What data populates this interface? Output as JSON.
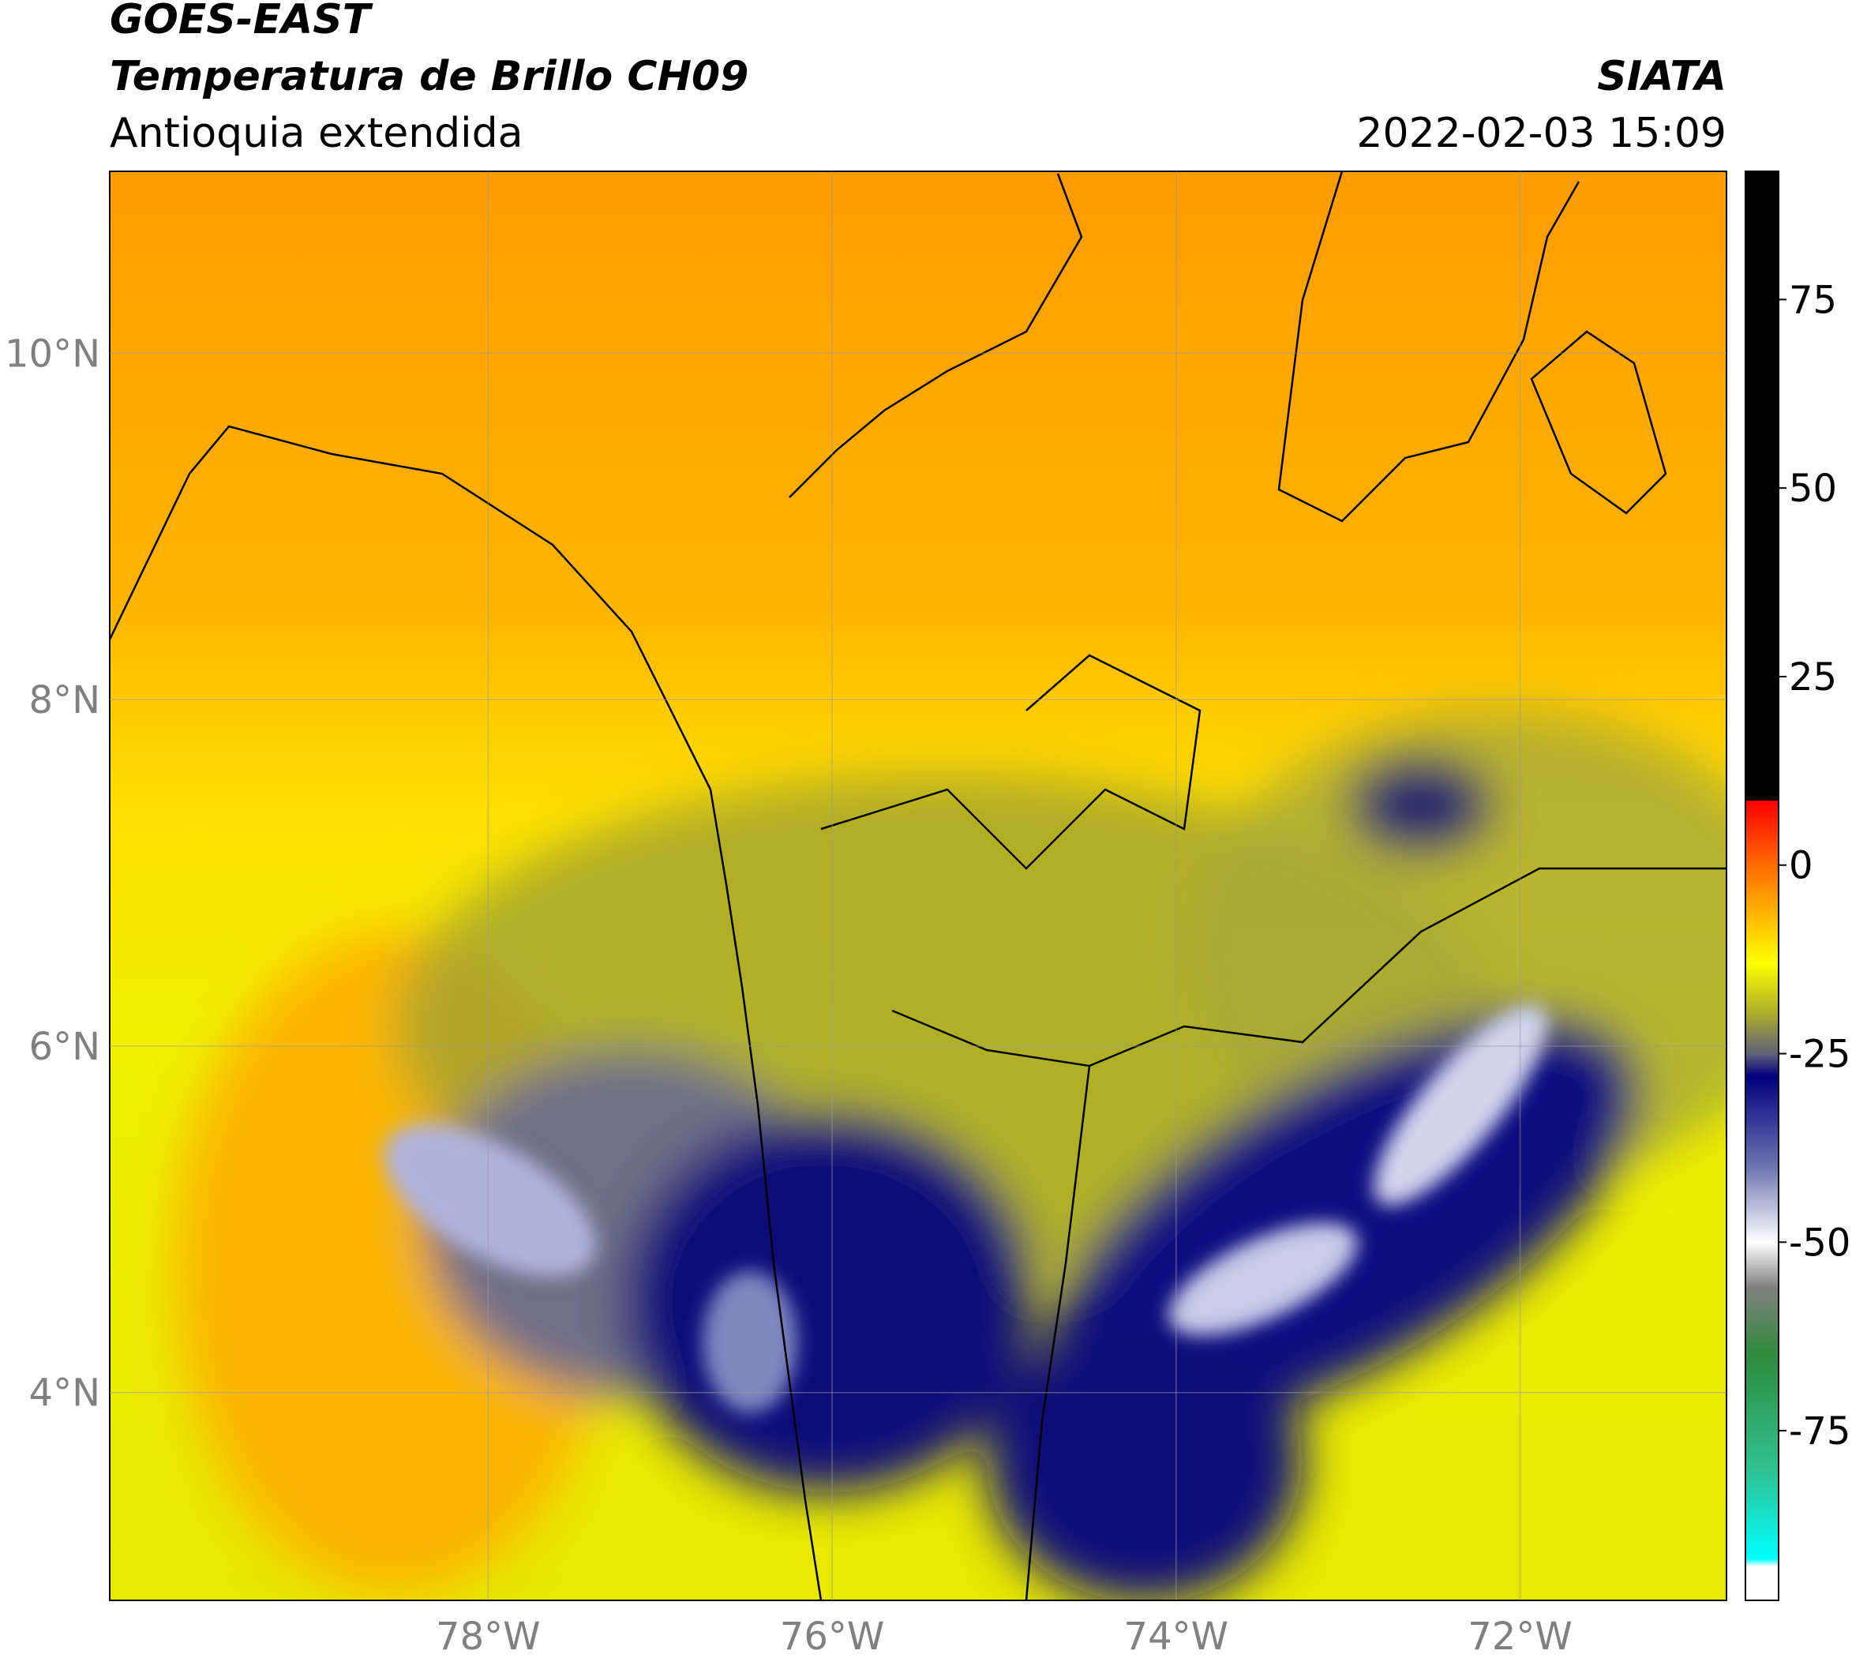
{
  "header": {
    "title": "GOES-EAST",
    "subtitle": "Temperatura de Brillo CH09",
    "region": "Antioquia extendida",
    "source": "SIATA",
    "datetime": "2022-02-03 15:09"
  },
  "chart_data": {
    "type": "map",
    "xlim": [
      -80.2,
      -70.8
    ],
    "ylim": [
      2.8,
      11.05
    ],
    "xticks": [
      {
        "value": -78,
        "label": "78°W"
      },
      {
        "value": -76,
        "label": "76°W"
      },
      {
        "value": -74,
        "label": "74°W"
      },
      {
        "value": -72,
        "label": "72°W"
      }
    ],
    "yticks": [
      {
        "value": 4,
        "label": "4°N"
      },
      {
        "value": 6,
        "label": "6°N"
      },
      {
        "value": 8,
        "label": "8°N"
      },
      {
        "value": 10,
        "label": "10°N"
      }
    ],
    "grid": true,
    "colorbar": {
      "lim": [
        -97.5,
        92
      ],
      "ticks": [
        -75,
        -50,
        -25,
        0,
        25,
        50,
        75
      ],
      "stops": [
        {
          "value": 92,
          "color": "#000000"
        },
        {
          "value": 8.6,
          "color": "#000000"
        },
        {
          "value": 8.5,
          "color": "#ff0000"
        },
        {
          "value": 0,
          "color": "#ff6a00"
        },
        {
          "value": -6,
          "color": "#ffb000"
        },
        {
          "value": -13,
          "color": "#ffff00"
        },
        {
          "value": -20,
          "color": "#a8a830"
        },
        {
          "value": -25,
          "color": "#606078"
        },
        {
          "value": -28,
          "color": "#000080"
        },
        {
          "value": -40,
          "color": "#6c74b0"
        },
        {
          "value": -50,
          "color": "#ffffff"
        },
        {
          "value": -56,
          "color": "#808080"
        },
        {
          "value": -65,
          "color": "#2e8b3a"
        },
        {
          "value": -80,
          "color": "#30c090"
        },
        {
          "value": -92,
          "color": "#00ffff"
        },
        {
          "value": -93,
          "color": "#ffffff"
        },
        {
          "value": -97.5,
          "color": "#ffffff"
        }
      ]
    }
  }
}
